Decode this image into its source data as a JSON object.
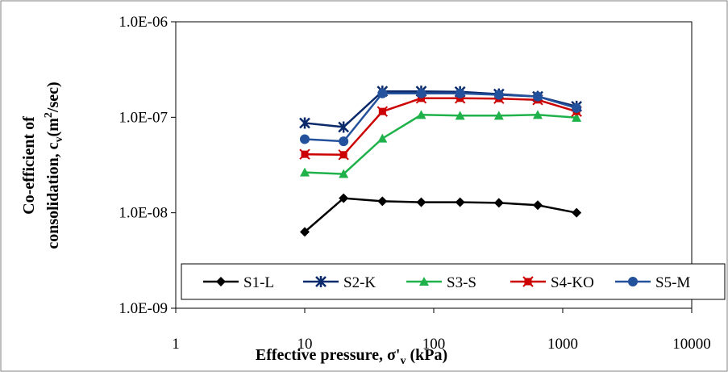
{
  "chart_data": {
    "type": "line",
    "xlabel_main": "Effective pressure, σ'",
    "xlabel_sub": "v",
    "xlabel_tail": " (kPa)",
    "ylabel_line1": "Co-efficient of",
    "ylabel_line2_main": "consolidation, c",
    "ylabel_line2_sub": "v",
    "ylabel_line2_mid": "(m",
    "ylabel_line2_sup": "2",
    "ylabel_line2_tail": "/sec)",
    "x_scale": "log",
    "y_scale": "log",
    "xlim": [
      1,
      10000
    ],
    "ylim": [
      1e-09,
      1e-06
    ],
    "x_ticks": [
      1,
      10,
      100,
      1000,
      10000
    ],
    "x_tick_labels": [
      "1",
      "10",
      "100",
      "1000",
      "10000"
    ],
    "y_ticks": [
      1e-09,
      1e-08,
      1e-07,
      1e-06
    ],
    "y_tick_labels": [
      "1.0E-09",
      "1.0E-08",
      "1.0E-07",
      "1.0E-06"
    ],
    "grid": false,
    "legend_position": "bottom",
    "x": [
      10,
      20,
      40,
      80,
      160,
      320,
      640,
      1280
    ],
    "series": [
      {
        "name": "S1-L",
        "color": "#000000",
        "marker": "diamond",
        "values": [
          6.3e-09,
          1.42e-08,
          1.32e-08,
          1.29e-08,
          1.29e-08,
          1.27e-08,
          1.2e-08,
          1e-08
        ]
      },
      {
        "name": "S2-K",
        "color": "#0b2a6b",
        "marker": "asterisk",
        "values": [
          8.7e-08,
          7.9e-08,
          1.87e-07,
          1.87e-07,
          1.85e-07,
          1.75e-07,
          1.65e-07,
          1.3e-07
        ]
      },
      {
        "name": "S3-S",
        "color": "#1fb24a",
        "marker": "triangle",
        "values": [
          2.65e-08,
          2.55e-08,
          6e-08,
          1.06e-07,
          1.04e-07,
          1.04e-07,
          1.06e-07,
          9.9e-08
        ]
      },
      {
        "name": "S4-KO",
        "color": "#cc0000",
        "marker": "square-x",
        "values": [
          4.1e-08,
          4.05e-08,
          1.15e-07,
          1.58e-07,
          1.58e-07,
          1.57e-07,
          1.52e-07,
          1.15e-07
        ]
      },
      {
        "name": "S5-M",
        "color": "#24519b",
        "marker": "circle",
        "values": [
          5.9e-08,
          5.6e-08,
          1.78e-07,
          1.78e-07,
          1.78e-07,
          1.72e-07,
          1.65e-07,
          1.25e-07
        ]
      }
    ]
  }
}
